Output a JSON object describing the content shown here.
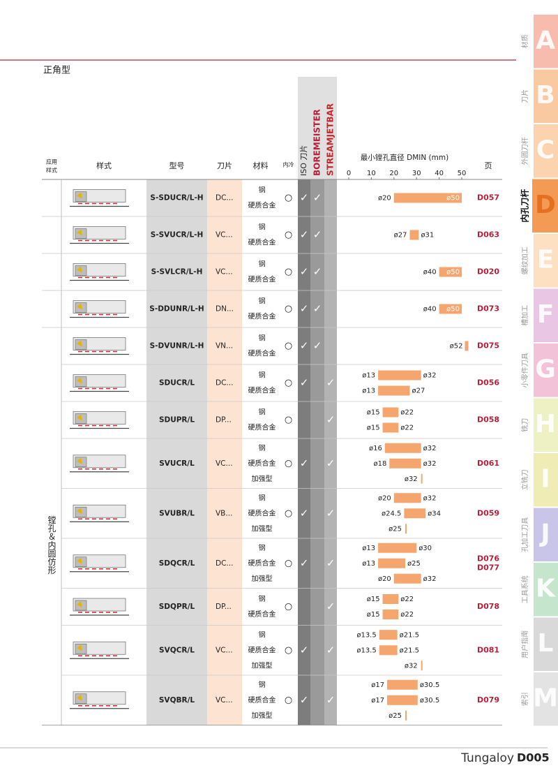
{
  "section_title": "正角型",
  "header": {
    "application": [
      "应用",
      "样式"
    ],
    "style": "样式",
    "model": "型号",
    "insert": "刀片",
    "material": "材料",
    "coolant": "内冷",
    "iso": "ISO 刀片",
    "boremeister": "BOREMEISTER",
    "jetbar": "STREAMJETBAR",
    "dmin": "最小镗孔直径 DMIN (mm)",
    "page": "页"
  },
  "dmin_axis": {
    "xlim": [
      0,
      50
    ],
    "xticks": [
      0,
      10,
      20,
      30,
      40,
      50
    ]
  },
  "application_label": "镗孔＆内圆仿形",
  "rows": [
    {
      "model": "S-SDUCR/L-H",
      "insert": "DC...",
      "materials": [
        "钢",
        "硬质合金"
      ],
      "coolant": "○",
      "iso": "✓",
      "boremeister": "✓",
      "jetbar": null,
      "bars": [
        {
          "values": [
            20,
            50
          ],
          "value_labels": [
            "ø20",
            "ø50"
          ]
        }
      ],
      "pages": [
        "D057"
      ]
    },
    {
      "model": "S-SVUCR/L-H",
      "insert": "VC...",
      "materials": [
        "钢",
        "硬质合金"
      ],
      "coolant": "○",
      "iso": "✓",
      "boremeister": "✓",
      "jetbar": null,
      "bars": [
        {
          "values": [
            27,
            31
          ],
          "value_labels": [
            "ø27",
            "ø31"
          ]
        }
      ],
      "pages": [
        "D063"
      ]
    },
    {
      "model": "S-SVLCR/L-H",
      "insert": "VC...",
      "materials": [
        "钢",
        "硬质合金"
      ],
      "coolant": "○",
      "iso": "✓",
      "boremeister": "✓",
      "jetbar": null,
      "bars": [
        {
          "values": [
            40,
            50
          ],
          "value_labels": [
            "ø40",
            "ø50"
          ]
        }
      ],
      "pages": [
        "D020"
      ]
    },
    {
      "model": "S-DDUNR/L-H",
      "insert": "DN...",
      "materials": [
        "钢",
        "硬质合金"
      ],
      "coolant": "○",
      "iso": "✓",
      "boremeister": "✓",
      "jetbar": null,
      "bars": [
        {
          "values": [
            40,
            50
          ],
          "value_labels": [
            "ø40",
            "ø50"
          ]
        }
      ],
      "pages": [
        "D073"
      ]
    },
    {
      "model": "S-DVUNR/L-H",
      "insert": "VN...",
      "materials": [
        "钢",
        "硬质合金"
      ],
      "coolant": "○",
      "iso": "✓",
      "boremeister": "✓",
      "jetbar": null,
      "bars": [
        {
          "values": [
            52
          ],
          "value_labels": [
            "ø52"
          ]
        }
      ],
      "pages": [
        "D075"
      ]
    },
    {
      "model": "SDUCR/L",
      "insert": "DC...",
      "materials": [
        "钢",
        "硬质合金"
      ],
      "coolant": "○",
      "iso": "✓",
      "boremeister": null,
      "jetbar": "✓",
      "bars": [
        {
          "values": [
            13,
            32
          ],
          "value_labels": [
            "ø13",
            "ø32"
          ]
        },
        {
          "values": [
            13,
            27
          ],
          "value_labels": [
            "ø13",
            "ø27"
          ]
        }
      ],
      "pages": [
        "D056"
      ]
    },
    {
      "model": "SDUPR/L",
      "insert": "DP...",
      "materials": [
        "钢",
        "硬质合金"
      ],
      "coolant": "○",
      "iso": null,
      "boremeister": null,
      "jetbar": "✓",
      "bars": [
        {
          "values": [
            15,
            22
          ],
          "value_labels": [
            "ø15",
            "ø22"
          ]
        },
        {
          "values": [
            15,
            22
          ],
          "value_labels": [
            "ø15",
            "ø22"
          ]
        }
      ],
      "pages": [
        "D058"
      ]
    },
    {
      "model": "SVUCR/L",
      "insert": "VC...",
      "materials": [
        "钢",
        "硬质合金",
        "加强型"
      ],
      "coolant": "○",
      "iso": "✓",
      "boremeister": null,
      "jetbar": "✓",
      "bars": [
        {
          "values": [
            16,
            32
          ],
          "value_labels": [
            "ø16",
            "ø32"
          ]
        },
        {
          "values": [
            18,
            32
          ],
          "value_labels": [
            "ø18",
            "ø32"
          ]
        },
        {
          "values": [
            32
          ],
          "value_labels": [
            "ø32"
          ]
        }
      ],
      "pages": [
        "D061"
      ]
    },
    {
      "model": "SVUBR/L",
      "insert": "VB...",
      "materials": [
        "钢",
        "硬质合金",
        "加强型"
      ],
      "coolant": "○",
      "iso": "✓",
      "boremeister": null,
      "jetbar": "✓",
      "bars": [
        {
          "values": [
            20,
            32
          ],
          "value_labels": [
            "ø20",
            "ø32"
          ]
        },
        {
          "values": [
            24.5,
            34
          ],
          "value_labels": [
            "ø24.5",
            "ø34"
          ]
        },
        {
          "values": [
            25
          ],
          "value_labels": [
            "ø25"
          ]
        }
      ],
      "pages": [
        "D059"
      ]
    },
    {
      "model": "SDQCR/L",
      "insert": "DC...",
      "materials": [
        "钢",
        "硬质合金",
        "加强型"
      ],
      "coolant": "○",
      "iso": "✓",
      "boremeister": null,
      "jetbar": "✓",
      "bars": [
        {
          "values": [
            13,
            30
          ],
          "value_labels": [
            "ø13",
            "ø30"
          ]
        },
        {
          "values": [
            13,
            25
          ],
          "value_labels": [
            "ø13",
            "ø25"
          ]
        },
        {
          "values": [
            20,
            32
          ],
          "value_labels": [
            "ø20",
            "ø32"
          ]
        }
      ],
      "pages": [
        "D076",
        "D077"
      ]
    },
    {
      "model": "SDQPR/L",
      "insert": "DP...",
      "materials": [
        "钢",
        "硬质合金"
      ],
      "coolant": "○",
      "iso": null,
      "boremeister": null,
      "jetbar": "✓",
      "bars": [
        {
          "values": [
            15,
            22
          ],
          "value_labels": [
            "ø15",
            "ø22"
          ]
        },
        {
          "values": [
            15,
            22
          ],
          "value_labels": [
            "ø15",
            "ø22"
          ]
        }
      ],
      "pages": [
        "D078"
      ]
    },
    {
      "model": "SVQCR/L",
      "insert": "VC...",
      "materials": [
        "钢",
        "硬质合金",
        "加强型"
      ],
      "coolant": "○",
      "iso": "✓",
      "boremeister": null,
      "jetbar": "✓",
      "bars": [
        {
          "values": [
            13.5,
            21.5
          ],
          "value_labels": [
            "ø13.5",
            "ø21.5"
          ]
        },
        {
          "values": [
            13.5,
            21.5
          ],
          "value_labels": [
            "ø13.5",
            "ø21.5"
          ]
        },
        {
          "values": [
            32
          ],
          "value_labels": [
            "ø32"
          ]
        }
      ],
      "pages": [
        "D081"
      ]
    },
    {
      "model": "SVQBR/L",
      "insert": "VC...",
      "materials": [
        "钢",
        "硬质合金",
        "加强型"
      ],
      "coolant": "○",
      "iso": "✓",
      "boremeister": null,
      "jetbar": "✓",
      "bars": [
        {
          "values": [
            17,
            30.5
          ],
          "value_labels": [
            "ø17",
            "ø30.5"
          ]
        },
        {
          "values": [
            17,
            30.5
          ],
          "value_labels": [
            "ø17",
            "ø30.5"
          ]
        },
        {
          "values": [
            25
          ],
          "value_labels": [
            "ø25"
          ]
        }
      ],
      "pages": [
        "D079"
      ]
    }
  ],
  "tabs": [
    {
      "letter": "A",
      "label": "材质",
      "color": "#f7bcae"
    },
    {
      "letter": "B",
      "label": "刀片",
      "color": "#f9c9a2"
    },
    {
      "letter": "C",
      "label": "外圆刀杆",
      "color": "#fbd3ae"
    },
    {
      "letter": "D",
      "label": "内孔刀杆",
      "color": "#f39a55",
      "active": true
    },
    {
      "letter": "E",
      "label": "螺纹加工",
      "color": "#fde0c2"
    },
    {
      "letter": "F",
      "label": "槽加工",
      "color": "#e8c6e4"
    },
    {
      "letter": "G",
      "label": "小零件刀具",
      "color": "#f2c2d8"
    },
    {
      "letter": "H",
      "label": "铣刀",
      "color": "#eef1c4"
    },
    {
      "letter": "I",
      "label": "立铣刀",
      "color": "#efecb6"
    },
    {
      "letter": "J",
      "label": "孔加工刀具",
      "color": "#c9c5e8"
    },
    {
      "letter": "K",
      "label": "工具系统",
      "color": "#c6e5cd"
    },
    {
      "letter": "L",
      "label": "用户指南",
      "color": "#d9d9d9"
    },
    {
      "letter": "M",
      "label": "索引",
      "color": "#e3e3e3"
    }
  ],
  "footer": {
    "brand": "Tungaloy",
    "page": "D005"
  }
}
